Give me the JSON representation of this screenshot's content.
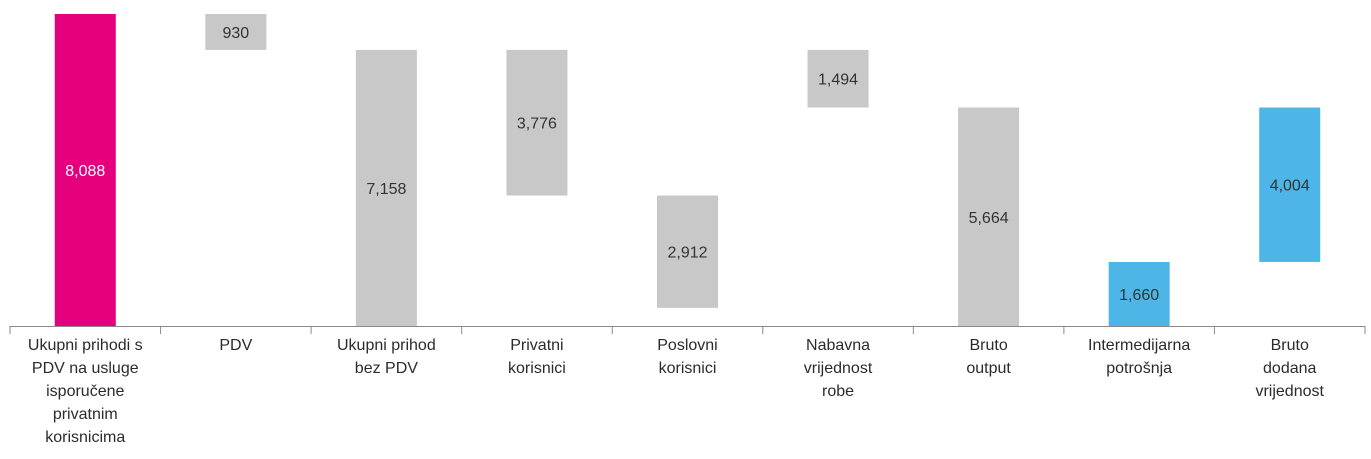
{
  "chart_data": {
    "type": "bar",
    "subtype": "waterfall",
    "categories": [
      "Ukupni prihodi s PDV na usluge isporučene privatnim korisnicima",
      "PDV",
      "Ukupni prihod bez PDV",
      "Privatni korisnici",
      "Poslovni korisnici",
      "Nabavna vrijednost robe",
      "Bruto output",
      "Intermedijarna potrošnja",
      "Bruto dodana vrijednost"
    ],
    "category_lines": [
      [
        "Ukupni prihodi s",
        "PDV na usluge",
        "isporučene",
        "privatnim",
        "korisnicima"
      ],
      [
        "PDV"
      ],
      [
        "Ukupni prihod",
        "bez PDV"
      ],
      [
        "Privatni",
        "korisnici"
      ],
      [
        "Poslovni",
        "korisnici"
      ],
      [
        "Nabavna",
        "vrijednost",
        "robe"
      ],
      [
        "Bruto",
        "output"
      ],
      [
        "Intermedijarna",
        "potrošnja"
      ],
      [
        "Bruto",
        "dodana",
        "vrijednost"
      ]
    ],
    "bars": [
      {
        "start": 0,
        "end": 8088,
        "label": "8,088",
        "color": "#e5007e",
        "label_color": "#ffffff"
      },
      {
        "start": 7158,
        "end": 8088,
        "label": "930",
        "color": "#c8c8c8",
        "label_color": "#333333"
      },
      {
        "start": 0,
        "end": 7158,
        "label": "7,158",
        "color": "#c8c8c8",
        "label_color": "#333333"
      },
      {
        "start": 3382,
        "end": 7158,
        "label": "3,776",
        "color": "#c8c8c8",
        "label_color": "#333333"
      },
      {
        "start": 470,
        "end": 3382,
        "label": "2,912",
        "color": "#c8c8c8",
        "label_color": "#333333"
      },
      {
        "start": 5664,
        "end": 7158,
        "label": "1,494",
        "color": "#c8c8c8",
        "label_color": "#333333"
      },
      {
        "start": 0,
        "end": 5664,
        "label": "5,664",
        "color": "#c8c8c8",
        "label_color": "#333333"
      },
      {
        "start": 0,
        "end": 1660,
        "label": "1,660",
        "color": "#4db6e6",
        "label_color": "#333333"
      },
      {
        "start": 1660,
        "end": 5664,
        "label": "4,004",
        "color": "#4db6e6",
        "label_color": "#333333"
      }
    ],
    "ylim": [
      0,
      8088
    ],
    "grid": false,
    "legend": "none",
    "title": "",
    "xlabel": "",
    "ylabel": ""
  }
}
